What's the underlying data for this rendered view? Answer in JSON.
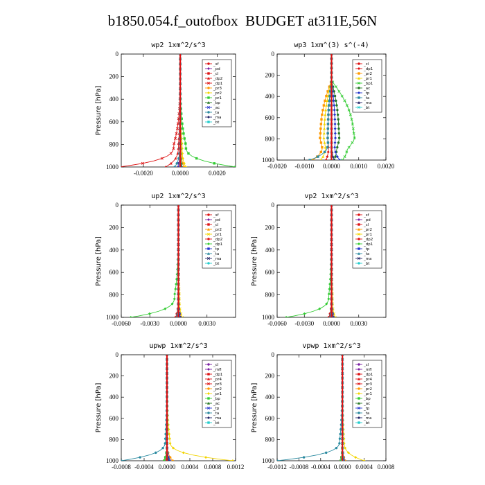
{
  "figure_title": "b1850.054.f_outofbox  BUDGET at311E,56N",
  "colors": {
    "red": "#dd1111",
    "purple": "#7a1fa2",
    "orange": "#ff9900",
    "yellow": "#f2d400",
    "green": "#33cc33",
    "darkgreen": "#227722",
    "blue": "#2233cc",
    "teal": "#2a8aa0",
    "darkblue": "#1a3a7a",
    "navy": "#222266",
    "cyan": "#22cccc"
  },
  "chart_data": [
    {
      "type": "line",
      "title": "wp2   1xm^2/s^3",
      "ylabel": "Pressure [hPa]",
      "ylim": [
        1000,
        0
      ],
      "yticks": [
        0,
        200,
        400,
        600,
        800,
        1000
      ],
      "xlim": [
        -0.0032,
        0.003
      ],
      "xticks": [
        -0.002,
        0.0,
        0.002
      ],
      "xtick_labels": [
        "-0.0020",
        "0.0000",
        "0.0020"
      ],
      "legend": "top-right",
      "series": [
        {
          "name": "_sf",
          "color": "red",
          "x": [
            0,
            0,
            0
          ]
        },
        {
          "name": "_pd",
          "color": "purple",
          "x": [
            0,
            0,
            5e-05
          ]
        },
        {
          "name": "_cl",
          "color": "red",
          "x": [
            0,
            -2e-05,
            -0.0001
          ]
        },
        {
          "name": "_dp2",
          "color": "red",
          "x": [
            0,
            -0.0001,
            -0.0008
          ]
        },
        {
          "name": "_dp1",
          "color": "red",
          "x": [
            0,
            -0.00035,
            -0.0033
          ]
        },
        {
          "name": "_pr3",
          "color": "orange",
          "x": [
            0,
            5e-05,
            0.0002
          ]
        },
        {
          "name": "_pr2",
          "color": "yellow",
          "x": [
            0,
            0.0001,
            0.0003
          ]
        },
        {
          "name": "_pr1",
          "color": "green",
          "x": [
            0,
            0.0003,
            0.003
          ]
        },
        {
          "name": "_bp",
          "color": "darkgreen",
          "x": [
            0,
            2e-05,
            0.0001
          ]
        },
        {
          "name": "_ac",
          "color": "blue",
          "x": [
            0,
            -2e-05,
            -0.0001
          ]
        },
        {
          "name": "_ta",
          "color": "teal",
          "x": [
            0,
            -3e-05,
            -0.0003
          ]
        },
        {
          "name": "_ma",
          "color": "navy",
          "x": [
            0,
            0,
            5e-05
          ]
        },
        {
          "name": "_bt",
          "color": "cyan",
          "x": [
            0,
            0,
            0
          ]
        }
      ]
    },
    {
      "type": "line",
      "title": "wp3   1xm^(3) s^(-4)",
      "ylabel": "",
      "ylim": [
        1000,
        0
      ],
      "yticks": [
        0,
        200,
        400,
        600,
        800,
        1000
      ],
      "xlim": [
        -0.002,
        0.002
      ],
      "xticks": [
        -0.002,
        -0.001,
        0.0,
        0.001,
        0.002
      ],
      "xtick_labels": [
        "-0.0020",
        "-0.0010",
        "0.0000",
        "0.0010",
        "0.0020"
      ],
      "legend": "top-right",
      "series": [
        {
          "name": "_cl",
          "color": "red",
          "x": [
            0,
            0,
            0
          ]
        },
        {
          "name": "_dp1",
          "color": "red",
          "x": [
            0,
            -0.0001,
            -0.0002
          ]
        },
        {
          "name": "_pr2",
          "color": "orange",
          "x": [
            0,
            -0.0003,
            -0.0007
          ]
        },
        {
          "name": "_pr1",
          "color": "yellow",
          "x": [
            0,
            -0.0002,
            -0.0004
          ]
        },
        {
          "name": "_bp1",
          "color": "green",
          "x": [
            0,
            0.0006,
            0.0004
          ]
        },
        {
          "name": "_ac",
          "color": "darkgreen",
          "x": [
            0,
            0.0002,
            0.0001
          ]
        },
        {
          "name": "_tp",
          "color": "blue",
          "x": [
            0,
            0.0001,
            0.0003
          ]
        },
        {
          "name": "_ta",
          "color": "teal",
          "x": [
            0,
            -0.0001,
            -0.0008
          ]
        },
        {
          "name": "_ma",
          "color": "navy",
          "x": [
            0,
            0,
            0.0001
          ]
        },
        {
          "name": "_bt",
          "color": "cyan",
          "x": [
            0,
            0,
            0
          ]
        }
      ]
    },
    {
      "type": "line",
      "title": "up2   1xm^2/s^3",
      "ylabel": "Pressure [hPa]",
      "ylim": [
        1000,
        0
      ],
      "yticks": [
        0,
        200,
        400,
        600,
        800,
        1000
      ],
      "xlim": [
        -0.006,
        0.006
      ],
      "xticks": [
        -0.006,
        -0.003,
        0.0,
        0.003
      ],
      "xtick_labels": [
        "-0.0060",
        "-0.0030",
        "0.0000",
        "0.0030"
      ],
      "legend": "top-right",
      "series": [
        {
          "name": "_sf",
          "color": "red",
          "x": [
            0,
            0,
            0
          ]
        },
        {
          "name": "_pd",
          "color": "purple",
          "x": [
            0,
            0,
            -0.0001
          ]
        },
        {
          "name": "_cl",
          "color": "red",
          "x": [
            0,
            0,
            -0.0002
          ]
        },
        {
          "name": "_pr2",
          "color": "orange",
          "x": [
            0,
            0,
            0.0003
          ]
        },
        {
          "name": "_pr1",
          "color": "yellow",
          "x": [
            0,
            0.0001,
            0.0004
          ]
        },
        {
          "name": "_dp2",
          "color": "red",
          "x": [
            0,
            0,
            -0.0003
          ]
        },
        {
          "name": "_dp1",
          "color": "green",
          "x": [
            0,
            -0.0004,
            -0.005
          ]
        },
        {
          "name": "_tp",
          "color": "blue",
          "x": [
            0,
            0,
            0.0002
          ]
        },
        {
          "name": "_ta",
          "color": "teal",
          "x": [
            0,
            0,
            -0.0002
          ]
        },
        {
          "name": "_ma",
          "color": "navy",
          "x": [
            0,
            0,
            0.0001
          ]
        },
        {
          "name": "_bt",
          "color": "cyan",
          "x": [
            0,
            0,
            0
          ]
        }
      ]
    },
    {
      "type": "line",
      "title": "vp2   1xm^2/s^3",
      "ylabel": "Pressure [hPa]",
      "ylim": [
        1000,
        0
      ],
      "yticks": [
        0,
        200,
        400,
        600,
        800,
        1000
      ],
      "xlim": [
        -0.006,
        0.006
      ],
      "xticks": [
        -0.006,
        -0.003,
        0.0,
        0.003
      ],
      "xtick_labels": [
        "-0.0060",
        "-0.0030",
        "0.0000",
        "0.0030"
      ],
      "legend": "top-right",
      "series": [
        {
          "name": "_sf",
          "color": "red",
          "x": [
            0,
            0,
            0
          ]
        },
        {
          "name": "_pd",
          "color": "purple",
          "x": [
            0,
            0,
            -0.0001
          ]
        },
        {
          "name": "_cl",
          "color": "red",
          "x": [
            0,
            0,
            -0.0002
          ]
        },
        {
          "name": "_pr2",
          "color": "orange",
          "x": [
            0,
            0,
            0.0003
          ]
        },
        {
          "name": "_pr1",
          "color": "yellow",
          "x": [
            0,
            0.0001,
            0.0004
          ]
        },
        {
          "name": "_dp2",
          "color": "red",
          "x": [
            0,
            0,
            -0.0003
          ]
        },
        {
          "name": "_dp1",
          "color": "green",
          "x": [
            0,
            -0.0003,
            -0.005
          ]
        },
        {
          "name": "_tp",
          "color": "blue",
          "x": [
            0,
            0,
            0.0002
          ]
        },
        {
          "name": "_ta",
          "color": "teal",
          "x": [
            0,
            0,
            -0.0002
          ]
        },
        {
          "name": "_ma",
          "color": "navy",
          "x": [
            0,
            0,
            0.0001
          ]
        },
        {
          "name": "_bt",
          "color": "cyan",
          "x": [
            0,
            0,
            0
          ]
        }
      ]
    },
    {
      "type": "line",
      "title": "upwp   1xm^2/s^3",
      "ylabel": "Pressure [hPa]",
      "ylim": [
        1000,
        0
      ],
      "yticks": [
        0,
        200,
        400,
        600,
        800,
        1000
      ],
      "xlim": [
        -0.0008,
        0.0012
      ],
      "xticks": [
        -0.0008,
        -0.0004,
        0.0,
        0.0004,
        0.0008,
        0.0012
      ],
      "xtick_labels": [
        "-0.0008",
        "-0.0004",
        "0.0000",
        "0.0004",
        "0.0008",
        "0.0012"
      ],
      "legend": "top-right",
      "series": [
        {
          "name": "_cl",
          "color": "purple",
          "x": [
            0,
            0,
            0
          ]
        },
        {
          "name": "_mfl",
          "color": "purple",
          "x": [
            0,
            0,
            5e-05
          ]
        },
        {
          "name": "_dp1",
          "color": "red",
          "x": [
            0,
            0,
            -5e-05
          ]
        },
        {
          "name": "_pr4",
          "color": "red",
          "x": [
            0,
            0,
            3e-05
          ]
        },
        {
          "name": "_pr3",
          "color": "red",
          "x": [
            0,
            0,
            -3e-05
          ]
        },
        {
          "name": "_pr2",
          "color": "orange",
          "x": [
            0,
            0,
            0.0001
          ]
        },
        {
          "name": "_pr1",
          "color": "yellow",
          "x": [
            0,
            5e-05,
            0.00115
          ]
        },
        {
          "name": "_bp",
          "color": "green",
          "x": [
            0,
            0,
            -5e-05
          ]
        },
        {
          "name": "_ac",
          "color": "darkgreen",
          "x": [
            0,
            0,
            3e-05
          ]
        },
        {
          "name": "_tp",
          "color": "blue",
          "x": [
            0,
            0,
            5e-05
          ]
        },
        {
          "name": "_ta",
          "color": "teal",
          "x": [
            0,
            -3e-05,
            -0.0008
          ]
        },
        {
          "name": "_ma",
          "color": "navy",
          "x": [
            0,
            0,
            2e-05
          ]
        },
        {
          "name": "_bt",
          "color": "cyan",
          "x": [
            0,
            0,
            0
          ]
        }
      ]
    },
    {
      "type": "line",
      "title": "vpwp   1xm^2/s^3",
      "ylabel": "Pressure [hPa]",
      "ylim": [
        1000,
        0
      ],
      "yticks": [
        0,
        200,
        400,
        600,
        800,
        1000
      ],
      "xlim": [
        -0.0012,
        0.0008
      ],
      "xticks": [
        -0.0012,
        -0.0008,
        -0.0004,
        0.0,
        0.0004,
        0.0008
      ],
      "xtick_labels": [
        "-0.0012",
        "-0.0008",
        "-0.0004",
        "0.0000",
        "0.0004",
        "0.0008"
      ],
      "legend": "top-right",
      "series": [
        {
          "name": "_cl",
          "color": "purple",
          "x": [
            0,
            0,
            0
          ]
        },
        {
          "name": "_mfl",
          "color": "purple",
          "x": [
            0,
            0,
            3e-05
          ]
        },
        {
          "name": "_dp1",
          "color": "red",
          "x": [
            0,
            0,
            -3e-05
          ]
        },
        {
          "name": "_pr4",
          "color": "red",
          "x": [
            0,
            0,
            2e-05
          ]
        },
        {
          "name": "_pr3",
          "color": "red",
          "x": [
            0,
            0,
            -2e-05
          ]
        },
        {
          "name": "_pr2",
          "color": "orange",
          "x": [
            0,
            0,
            5e-05
          ]
        },
        {
          "name": "_pr1",
          "color": "yellow",
          "x": [
            0,
            3e-05,
            0.0004
          ]
        },
        {
          "name": "_bp",
          "color": "green",
          "x": [
            0,
            0,
            -3e-05
          ]
        },
        {
          "name": "_ac",
          "color": "darkgreen",
          "x": [
            0,
            0,
            2e-05
          ]
        },
        {
          "name": "_tp",
          "color": "blue",
          "x": [
            0,
            0,
            3e-05
          ]
        },
        {
          "name": "_ta",
          "color": "teal",
          "x": [
            0,
            -5e-05,
            -0.0012
          ]
        },
        {
          "name": "_ma",
          "color": "navy",
          "x": [
            0,
            0,
            1e-05
          ]
        },
        {
          "name": "_bt",
          "color": "cyan",
          "x": [
            0,
            0,
            0
          ]
        }
      ]
    }
  ]
}
